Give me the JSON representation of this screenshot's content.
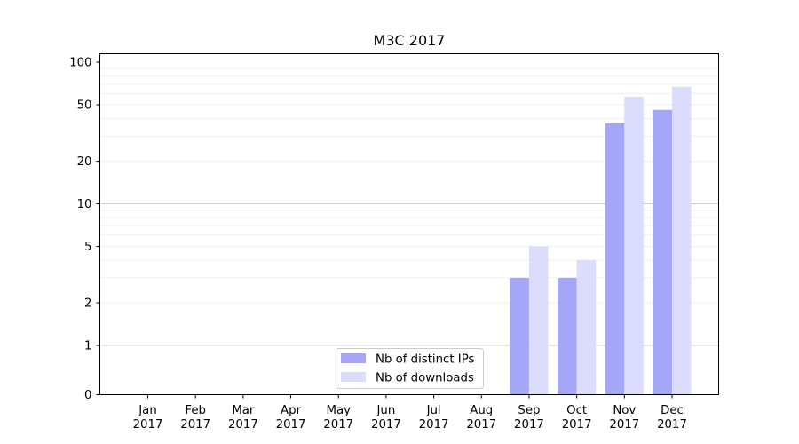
{
  "chart_data": {
    "type": "bar",
    "title": "M3C 2017",
    "xlabel": "",
    "ylabel": "",
    "yscale": "symlog",
    "ylim": [
      0,
      100
    ],
    "yticks": [
      0,
      1,
      2,
      5,
      10,
      20,
      50,
      100
    ],
    "ytick_labels": [
      "0",
      "1",
      "2",
      "5",
      "10",
      "20",
      "50",
      "100"
    ],
    "categories": [
      "Jan\n2017",
      "Feb\n2017",
      "Mar\n2017",
      "Apr\n2017",
      "May\n2017",
      "Jun\n2017",
      "Jul\n2017",
      "Aug\n2017",
      "Sep\n2017",
      "Oct\n2017",
      "Nov\n2017",
      "Dec\n2017"
    ],
    "category_lines": [
      [
        "Jan",
        "2017"
      ],
      [
        "Feb",
        "2017"
      ],
      [
        "Mar",
        "2017"
      ],
      [
        "Apr",
        "2017"
      ],
      [
        "May",
        "2017"
      ],
      [
        "Jun",
        "2017"
      ],
      [
        "Jul",
        "2017"
      ],
      [
        "Aug",
        "2017"
      ],
      [
        "Sep",
        "2017"
      ],
      [
        "Oct",
        "2017"
      ],
      [
        "Nov",
        "2017"
      ],
      [
        "Dec",
        "2017"
      ]
    ],
    "series": [
      {
        "name": "Nb of distinct IPs",
        "color": "#a6a6f8",
        "values": [
          0,
          0,
          0,
          0,
          0,
          0,
          0,
          0,
          3,
          3,
          37,
          46
        ]
      },
      {
        "name": "Nb of downloads",
        "color": "#dcdcfc",
        "values": [
          0,
          0,
          0,
          0,
          0,
          0,
          0,
          0,
          5,
          4,
          57,
          67
        ]
      }
    ],
    "grid": "y-major-and-minor",
    "legend": "lower-center"
  }
}
